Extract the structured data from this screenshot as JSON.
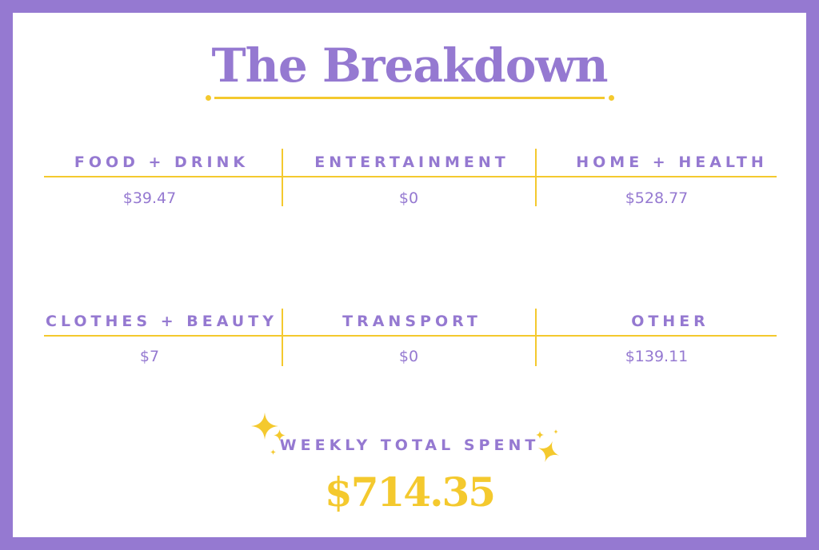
{
  "title": "The Breakdown",
  "categories": [
    {
      "label": "FOOD + DRINK",
      "value": "$39.47"
    },
    {
      "label": "ENTERTAINMENT",
      "value": "$0"
    },
    {
      "label": "HOME + HEALTH",
      "value": "$528.77"
    },
    {
      "label": "CLOTHES + BEAUTY",
      "value": "$7"
    },
    {
      "label": "TRANSPORT",
      "value": "$0"
    },
    {
      "label": "OTHER",
      "value": "$139.11"
    }
  ],
  "total": {
    "label": "WEEKLY TOTAL SPENT",
    "value": "$714.35"
  },
  "colors": {
    "purple": "#9579d1",
    "yellow": "#f4c92e"
  },
  "icons": [
    "sparkle-icon"
  ]
}
